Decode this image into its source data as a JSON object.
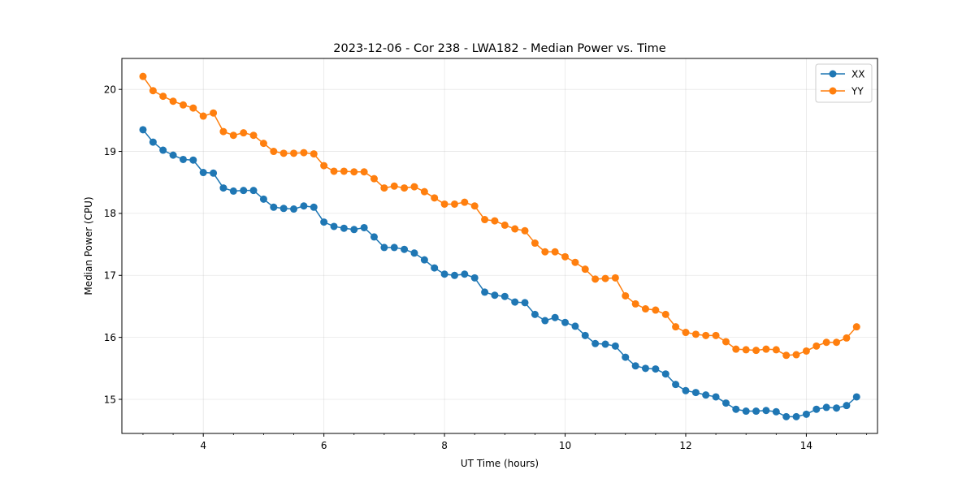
{
  "chart_data": {
    "type": "line",
    "title": "2023-12-06 - Cor 238 - LWA182 - Median Power vs. Time",
    "xlabel": "UT Time (hours)",
    "ylabel": "Median Power (CPU)",
    "xlim": [
      2.65,
      15.18
    ],
    "ylim": [
      14.45,
      20.5
    ],
    "xticks": [
      4,
      6,
      8,
      10,
      12,
      14
    ],
    "xtick_labels": [
      "4",
      "6",
      "8",
      "10",
      "12",
      "14"
    ],
    "yticks": [
      15,
      16,
      17,
      18,
      19,
      20
    ],
    "ytick_labels": [
      "15",
      "16",
      "17",
      "18",
      "19",
      "20"
    ],
    "x_minor_step": 0.5,
    "grid": true,
    "legend_position": "top-right",
    "x": [
      3.0,
      3.167,
      3.333,
      3.5,
      3.667,
      3.833,
      4.0,
      4.167,
      4.333,
      4.5,
      4.667,
      4.833,
      5.0,
      5.167,
      5.333,
      5.5,
      5.667,
      5.833,
      6.0,
      6.167,
      6.333,
      6.5,
      6.667,
      6.833,
      7.0,
      7.167,
      7.333,
      7.5,
      7.667,
      7.833,
      8.0,
      8.167,
      8.333,
      8.5,
      8.667,
      8.833,
      9.0,
      9.167,
      9.333,
      9.5,
      9.667,
      9.833,
      10.0,
      10.167,
      10.333,
      10.5,
      10.667,
      10.833,
      11.0,
      11.167,
      11.333,
      11.5,
      11.667,
      11.833,
      12.0,
      12.167,
      12.333,
      12.5,
      12.667,
      12.833,
      13.0,
      13.167,
      13.333,
      13.5,
      13.667,
      13.833,
      14.0,
      14.167,
      14.333,
      14.5,
      14.667,
      14.833
    ],
    "series": [
      {
        "name": "XX",
        "color": "#1f77b4",
        "values": [
          19.35,
          19.15,
          19.02,
          18.94,
          18.87,
          18.86,
          18.66,
          18.65,
          18.41,
          18.36,
          18.37,
          18.37,
          18.23,
          18.1,
          18.08,
          18.07,
          18.12,
          18.1,
          17.86,
          17.79,
          17.76,
          17.74,
          17.77,
          17.62,
          17.45,
          17.45,
          17.42,
          17.36,
          17.25,
          17.12,
          17.02,
          17.0,
          17.02,
          16.96,
          16.73,
          16.68,
          16.66,
          16.57,
          16.56,
          16.37,
          16.27,
          16.32,
          16.24,
          16.18,
          16.03,
          15.9,
          15.89,
          15.86,
          15.68,
          15.54,
          15.5,
          15.49,
          15.41,
          15.24,
          15.14,
          15.11,
          15.07,
          15.04,
          14.94,
          14.84,
          14.81,
          14.81,
          14.82,
          14.8,
          14.72,
          14.72,
          14.76,
          14.84,
          14.87,
          14.86,
          14.9,
          15.04
        ]
      },
      {
        "name": "YY",
        "color": "#ff7f0e",
        "values": [
          20.21,
          19.98,
          19.89,
          19.81,
          19.75,
          19.7,
          19.57,
          19.62,
          19.32,
          19.26,
          19.3,
          19.26,
          19.13,
          19.0,
          18.97,
          18.97,
          18.98,
          18.96,
          18.77,
          18.68,
          18.68,
          18.67,
          18.67,
          18.56,
          18.41,
          18.44,
          18.41,
          18.43,
          18.35,
          18.25,
          18.15,
          18.15,
          18.18,
          18.12,
          17.9,
          17.88,
          17.81,
          17.75,
          17.72,
          17.52,
          17.38,
          17.38,
          17.3,
          17.21,
          17.1,
          16.94,
          16.95,
          16.96,
          16.67,
          16.54,
          16.46,
          16.44,
          16.37,
          16.17,
          16.08,
          16.05,
          16.03,
          16.03,
          15.93,
          15.81,
          15.8,
          15.79,
          15.81,
          15.8,
          15.71,
          15.72,
          15.78,
          15.86,
          15.92,
          15.92,
          15.99,
          16.17
        ]
      }
    ]
  }
}
